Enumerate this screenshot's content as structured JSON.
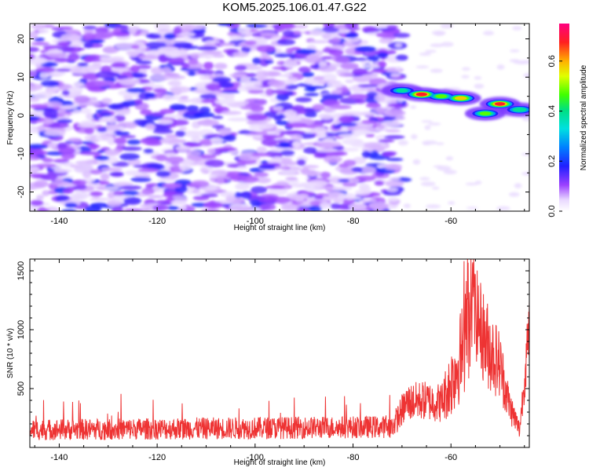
{
  "title": "KOM5.2025.106.01.47.G22",
  "colors": {
    "snr_line": "#ee3333",
    "frame": "#000000",
    "background": "#ffffff"
  },
  "chart_data": [
    {
      "type": "heatmap",
      "xlabel": "Height of straight line (km)",
      "ylabel": "Frequency (Hz)",
      "xlim": [
        -146,
        -44
      ],
      "ylim": [
        -25,
        24
      ],
      "xticks": [
        -140,
        -120,
        -100,
        -80,
        -60
      ],
      "yticks": [
        -20,
        -10,
        0,
        10,
        20
      ],
      "xtick_labels": [
        "-140",
        "-120",
        "-100",
        "-80",
        "-60"
      ],
      "ytick_labels": [
        "-20",
        "-10",
        "0",
        "10",
        "20"
      ],
      "noise_region_km": [
        -146,
        -72
      ],
      "signal_track": [
        {
          "h": -70,
          "f": 6.5,
          "amp": 0.4
        },
        {
          "h": -66,
          "f": 5.5,
          "amp": 0.7
        },
        {
          "h": -62,
          "f": 5.0,
          "amp": 0.5
        },
        {
          "h": -58,
          "f": 4.5,
          "amp": 0.62
        },
        {
          "h": -53,
          "f": 0.5,
          "amp": 0.5
        },
        {
          "h": -50,
          "f": 3.0,
          "amp": 0.68
        },
        {
          "h": -46,
          "f": 1.5,
          "amp": 0.45
        }
      ],
      "colorbar": {
        "label": "Normalized spectral amplitude",
        "range": [
          0,
          0.75
        ],
        "ticks": [
          0.0,
          0.2,
          0.4,
          0.6
        ],
        "tick_labels": [
          "0.0",
          "0.2",
          "0.4",
          "0.6"
        ]
      }
    },
    {
      "type": "line",
      "xlabel": "Height of straight line (km)",
      "ylabel": "SNR (10 * v/v)",
      "xlim": [
        -146,
        -44
      ],
      "ylim": [
        0,
        1600
      ],
      "xticks": [
        -140,
        -120,
        -100,
        -80,
        -60
      ],
      "yticks": [
        500,
        1000,
        1500
      ],
      "xtick_labels": [
        "-140",
        "-120",
        "-100",
        "-80",
        "-60"
      ],
      "ytick_labels": [
        "500",
        "1000",
        "1500"
      ],
      "envelope": [
        {
          "h": -146,
          "base": 150,
          "amp": 90
        },
        {
          "h": -100,
          "base": 165,
          "amp": 95
        },
        {
          "h": -72,
          "base": 175,
          "amp": 95
        },
        {
          "h": -69,
          "base": 380,
          "amp": 160
        },
        {
          "h": -66,
          "base": 400,
          "amp": 170
        },
        {
          "h": -62,
          "base": 380,
          "amp": 170
        },
        {
          "h": -60,
          "base": 550,
          "amp": 300
        },
        {
          "h": -57,
          "base": 900,
          "amp": 450
        },
        {
          "h": -55,
          "base": 1150,
          "amp": 400
        },
        {
          "h": -53,
          "base": 900,
          "amp": 400
        },
        {
          "h": -50,
          "base": 700,
          "amp": 300
        },
        {
          "h": -48,
          "base": 350,
          "amp": 150
        },
        {
          "h": -46,
          "base": 150,
          "amp": 80
        },
        {
          "h": -44,
          "base": 1000,
          "amp": 300
        }
      ]
    }
  ]
}
